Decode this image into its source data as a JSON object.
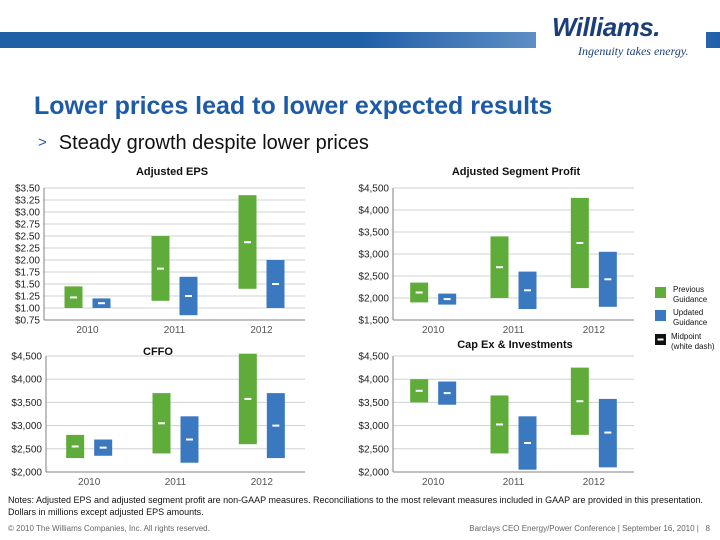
{
  "header": {
    "logo_text": "Williams.",
    "tagline": "Ingenuity takes energy.",
    "title": "Lower prices lead to lower expected results",
    "bullet": "Steady growth despite lower prices"
  },
  "colors": {
    "previous": "#5fac3a",
    "updated": "#3a78c0",
    "grid": "#d0d0d0",
    "axis": "#808080"
  },
  "legend": {
    "previous": "Previous Guidance",
    "updated": "Updated Guidance",
    "midpoint": "Midpoint (white dash)"
  },
  "chart_data": [
    {
      "type": "bar",
      "subtype": "floating-range",
      "title": "Adjusted EPS",
      "categories": [
        "2010",
        "2011",
        "2012"
      ],
      "ylim": [
        0.75,
        3.5
      ],
      "yticks": [
        "$0.75",
        "$1.00",
        "$1.25",
        "$1.50",
        "$1.75",
        "$2.00",
        "$2.25",
        "$2.50",
        "$2.75",
        "$3.00",
        "$3.25",
        "$3.50"
      ],
      "series": [
        {
          "name": "Previous Guidance",
          "ranges": [
            [
              1.0,
              1.45
            ],
            [
              1.15,
              2.5
            ],
            [
              1.4,
              3.35
            ]
          ],
          "midpoints": [
            1.22,
            1.82,
            2.37
          ]
        },
        {
          "name": "Updated Guidance",
          "ranges": [
            [
              1.0,
              1.2
            ],
            [
              0.85,
              1.65
            ],
            [
              1.0,
              2.0
            ]
          ],
          "midpoints": [
            1.1,
            1.25,
            1.5
          ]
        }
      ]
    },
    {
      "type": "bar",
      "subtype": "floating-range",
      "title": "Adjusted Segment Profit",
      "categories": [
        "2010",
        "2011",
        "2012"
      ],
      "ylim": [
        1500,
        4500
      ],
      "yticks": [
        "$1,500",
        "$2,000",
        "$2,500",
        "$3,000",
        "$3,500",
        "$4,000",
        "$4,500"
      ],
      "series": [
        {
          "name": "Previous Guidance",
          "ranges": [
            [
              1900,
              2350
            ],
            [
              2000,
              3400
            ],
            [
              2225,
              4275
            ]
          ],
          "midpoints": [
            2125,
            2700,
            3250
          ]
        },
        {
          "name": "Updated Guidance",
          "ranges": [
            [
              1850,
              2100
            ],
            [
              1750,
              2600
            ],
            [
              1800,
              3050
            ]
          ],
          "midpoints": [
            1975,
            2175,
            2425
          ]
        }
      ]
    },
    {
      "type": "bar",
      "subtype": "floating-range",
      "title": "CFFO",
      "categories": [
        "2010",
        "2011",
        "2012"
      ],
      "ylim": [
        2000,
        4500
      ],
      "yticks": [
        "$2,000",
        "$2,500",
        "$3,000",
        "$3,500",
        "$4,000",
        "$4,500"
      ],
      "series": [
        {
          "name": "Previous Guidance",
          "ranges": [
            [
              2300,
              2800
            ],
            [
              2400,
              3700
            ],
            [
              2600,
              4550
            ]
          ],
          "midpoints": [
            2550,
            3050,
            3575
          ]
        },
        {
          "name": "Updated Guidance",
          "ranges": [
            [
              2350,
              2700
            ],
            [
              2200,
              3200
            ],
            [
              2300,
              3700
            ]
          ],
          "midpoints": [
            2525,
            2700,
            3000
          ]
        }
      ]
    },
    {
      "type": "bar",
      "subtype": "floating-range",
      "title": "Cap Ex & Investments",
      "categories": [
        "2010",
        "2011",
        "2012"
      ],
      "ylim": [
        2000,
        4500
      ],
      "yticks": [
        "$2,000",
        "$2,500",
        "$3,000",
        "$3,500",
        "$4,000",
        "$4,500"
      ],
      "series": [
        {
          "name": "Previous Guidance",
          "ranges": [
            [
              3500,
              4000
            ],
            [
              2400,
              3650
            ],
            [
              2800,
              4250
            ]
          ],
          "midpoints": [
            3750,
            3025,
            3525
          ]
        },
        {
          "name": "Updated Guidance",
          "ranges": [
            [
              3450,
              3950
            ],
            [
              2050,
              3200
            ],
            [
              2100,
              3575
            ]
          ],
          "midpoints": [
            3700,
            2625,
            2850
          ]
        }
      ]
    }
  ],
  "notes": "Notes: Adjusted EPS  and adjusted segment profit are non-GAAP measures.  Reconciliations to the most relevant measures included in GAAP are provided in this presentation. Dollars in millions except adjusted EPS amounts.",
  "footer": {
    "copyright": "© 2010 The Williams Companies, Inc. All rights reserved.",
    "conference": "Barclays CEO Energy/Power Conference  |  September 16, 2010  |",
    "page": "8"
  }
}
